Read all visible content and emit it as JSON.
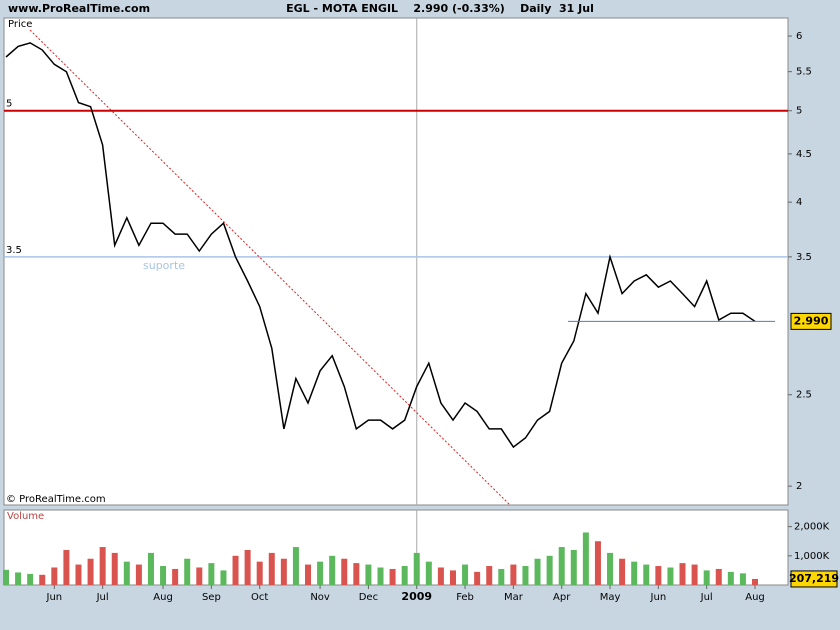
{
  "header": {
    "site": "www.ProRealTime.com",
    "title": "EGL - MOTA ENGIL    2.990 (-0.33%)    Daily  31 Jul",
    "copyright": "© ProRealTime.com"
  },
  "chart_data": [
    {
      "type": "line",
      "y_label": "Price",
      "log_scale": true,
      "color": "#000000",
      "categories": [
        null,
        null,
        null,
        null,
        "Jun",
        null,
        null,
        null,
        "Jul",
        null,
        null,
        null,
        null,
        "Aug",
        null,
        null,
        null,
        "Sep",
        null,
        null,
        null,
        "Oct",
        null,
        null,
        null,
        null,
        "Nov",
        null,
        null,
        null,
        "Dec",
        null,
        null,
        null,
        "2009",
        null,
        null,
        null,
        "Feb",
        null,
        null,
        null,
        "Mar",
        null,
        null,
        null,
        "Apr",
        null,
        null,
        null,
        "May",
        null,
        null,
        null,
        "Jun",
        null,
        null,
        null,
        "Jul",
        null,
        null,
        null,
        "Aug"
      ],
      "series": [
        {
          "name": "EGL",
          "color": "#000000",
          "values": [
            5.7,
            5.85,
            5.9,
            5.8,
            5.6,
            5.5,
            5.1,
            5.05,
            4.6,
            3.6,
            3.85,
            3.6,
            3.8,
            3.8,
            3.7,
            3.7,
            3.55,
            3.7,
            3.8,
            3.5,
            3.3,
            3.1,
            2.8,
            2.3,
            2.6,
            2.45,
            2.65,
            2.75,
            2.55,
            2.3,
            2.35,
            2.35,
            2.3,
            2.35,
            2.55,
            2.7,
            2.45,
            2.35,
            2.45,
            2.4,
            2.3,
            2.3,
            2.2,
            2.25,
            2.35,
            2.4,
            2.7,
            2.85,
            3.2,
            3.05,
            3.5,
            3.2,
            3.3,
            3.35,
            3.25,
            3.3,
            3.2,
            3.1,
            3.3,
            3.0,
            3.05,
            3.05,
            2.99
          ]
        }
      ],
      "ylim": [
        1.91,
        6.27
      ],
      "yticks": [
        2,
        2.5,
        3.5,
        4,
        4.5,
        5,
        5.5,
        6
      ],
      "hlines": [
        {
          "value": 5,
          "label": "5",
          "color": "#cc0000"
        },
        {
          "value": 3.5,
          "label": "3.5",
          "color": "#a8c4e8"
        }
      ],
      "annotation": "suporte",
      "last_value": {
        "value": 2.99,
        "label": "2.990"
      }
    },
    {
      "type": "bar",
      "y_label": "Volume",
      "up_color": "#5cb85c",
      "down_color": "#d9534f",
      "values": [
        520000,
        430000,
        380000,
        350000,
        600000,
        1200000,
        700000,
        900000,
        1300000,
        1100000,
        800000,
        700000,
        1100000,
        650000,
        550000,
        900000,
        600000,
        750000,
        500000,
        1000000,
        1200000,
        800000,
        1100000,
        900000,
        1300000,
        700000,
        800000,
        1000000,
        900000,
        750000,
        700000,
        600000,
        550000,
        650000,
        1100000,
        800000,
        600000,
        500000,
        700000,
        450000,
        650000,
        550000,
        700000,
        650000,
        900000,
        1000000,
        1300000,
        1200000,
        1800000,
        1500000,
        1100000,
        900000,
        800000,
        700000,
        650000,
        600000,
        750000,
        700000,
        500000,
        550000,
        450000,
        400000,
        207219
      ],
      "ylim": [
        0,
        2570000
      ],
      "yticks": [
        {
          "value": 1000000,
          "label": "1,000K"
        },
        {
          "value": 2000000,
          "label": "2,000K"
        }
      ],
      "last_value": {
        "value": 207219,
        "label": "207,219"
      }
    }
  ]
}
